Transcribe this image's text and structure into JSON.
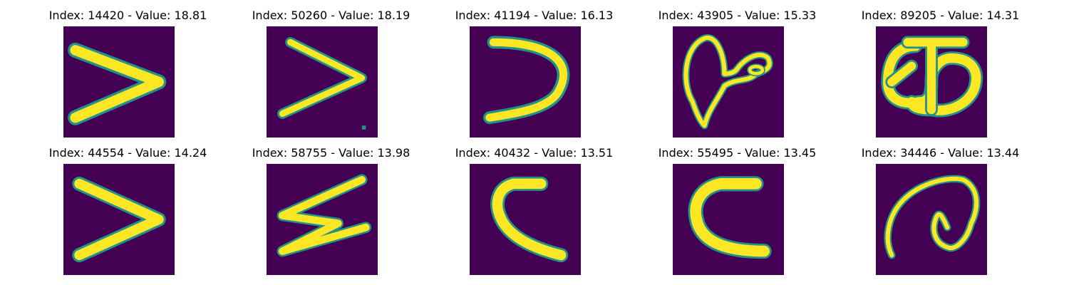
{
  "colors": {
    "background": "#440154",
    "stroke": "#fde725",
    "edge": "#21918c"
  },
  "panels": [
    {
      "title": "Index: 14420 - Value: 18.81",
      "glyph": "greater-than"
    },
    {
      "title": "Index: 50260 - Value: 18.19",
      "glyph": "greater-than"
    },
    {
      "title": "Index: 41194 - Value: 16.13",
      "glyph": "curved-greater-than"
    },
    {
      "title": "Index: 43905 - Value: 15.33",
      "glyph": "loop-shape"
    },
    {
      "title": "Index: 89205 - Value: 14.31",
      "glyph": "double-loop-shape"
    },
    {
      "title": "Index: 44554 - Value: 14.24",
      "glyph": "greater-than"
    },
    {
      "title": "Index: 58755 - Value: 13.98",
      "glyph": "zigzag"
    },
    {
      "title": "Index: 40432 - Value: 13.51",
      "glyph": "less-than"
    },
    {
      "title": "Index: 55495 - Value: 13.45",
      "glyph": "less-than"
    },
    {
      "title": "Index: 34446 - Value: 13.44",
      "glyph": "at-sign"
    }
  ]
}
